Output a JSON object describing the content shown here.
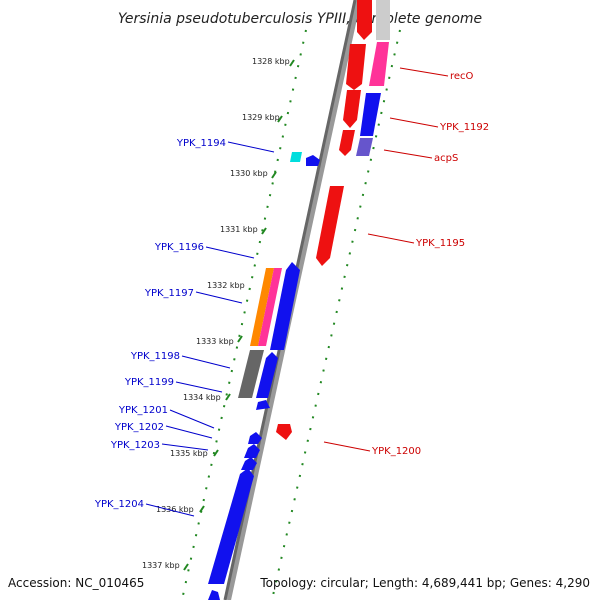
{
  "title": "Yersinia pseudotuberculosis YPIII, complete genome",
  "footer": {
    "accession": "Accession: NC_010465",
    "topology": "Topology: circular; Length: 4,689,441 bp; Genes: 4,290"
  },
  "colors": {
    "forward_label": "#0000cc",
    "reverse_label": "#cc0000",
    "backbone": "#888888",
    "tick_dots": "#228822"
  },
  "scale_labels": [
    "1328 kbp",
    "1329 kbp",
    "1330 kbp",
    "1331 kbp",
    "1332 kbp",
    "1333 kbp",
    "1334 kbp",
    "1335 kbp",
    "1336 kbp",
    "1337 kbp"
  ],
  "forward_genes": [
    "YPK_1194",
    "YPK_1196",
    "YPK_1197",
    "YPK_1198",
    "YPK_1199",
    "YPK_1201",
    "YPK_1202",
    "YPK_1203",
    "YPK_1204"
  ],
  "reverse_genes": [
    "recO",
    "YPK_1192",
    "acpS",
    "YPK_1195",
    "YPK_1200"
  ]
}
